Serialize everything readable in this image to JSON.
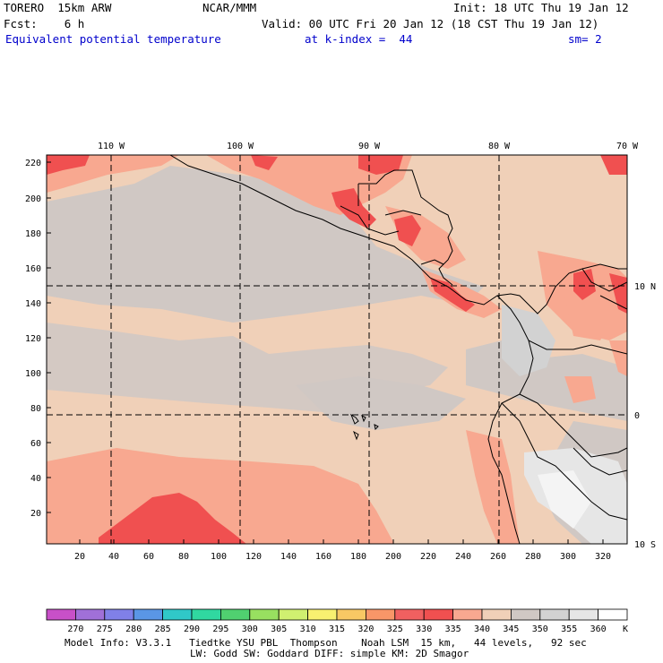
{
  "header": {
    "model": "TORERO  15km ARW",
    "org": "NCAR/MMM",
    "init": "Init: 18 UTC Thu 19 Jan 12",
    "fcst": "Fcst:    6 h",
    "valid": "Valid: 00 UTC Fri 20 Jan 12 (18 CST Thu 19 Jan 12)",
    "field": "Equivalent potential temperature",
    "level": "at k-index =  44",
    "smooth": "sm= 2"
  },
  "top_axis": [
    "110 W",
    "100 W",
    "90 W",
    "80 W",
    "70 W"
  ],
  "right_axis": [
    "10 N",
    "0",
    "10 S"
  ],
  "left_axis": [
    "220",
    "200",
    "180",
    "160",
    "140",
    "120",
    "100",
    "80",
    "60",
    "40",
    "20"
  ],
  "bottom_axis": [
    "20",
    "40",
    "60",
    "80",
    "100",
    "120",
    "140",
    "160",
    "180",
    "200",
    "220",
    "240",
    "260",
    "280",
    "300",
    "320"
  ],
  "colorbar": {
    "labels": [
      "270",
      "275",
      "280",
      "285",
      "290",
      "295",
      "300",
      "305",
      "310",
      "315",
      "320",
      "325",
      "330",
      "335",
      "340",
      "345",
      "350",
      "355",
      "360"
    ],
    "unit": "K",
    "colors": [
      "#c850c8",
      "#a070d8",
      "#8080e8",
      "#5a96e6",
      "#30c8c8",
      "#30d8a0",
      "#50d070",
      "#98e060",
      "#d0f070",
      "#f8f070",
      "#f8c864",
      "#f89668",
      "#f06060",
      "#f05050",
      "#f8a890",
      "#f0d0b8",
      "#d0c8c4",
      "#d2d2d2",
      "#e6e6e6",
      "#ffffff"
    ]
  },
  "footer": {
    "line1": "Model Info: V3.3.1   Tiedtke YSU PBL  Thompson    Noah LSM  15 km,   44 levels,   92 sec",
    "line2": "LW: Godd SW: Goddard DIFF: simple KM: 2D Smagor"
  }
}
